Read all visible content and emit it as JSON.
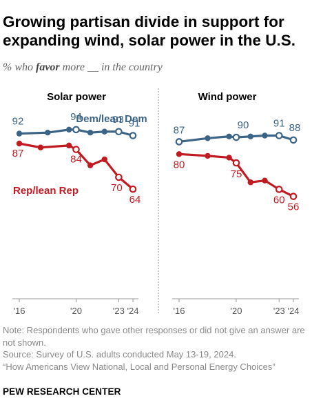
{
  "title": "Growing partisan divide in support for expanding wind, solar power in the U.S.",
  "subtitle": {
    "prefix": "% who ",
    "emphasis": "favor",
    "suffix": " more __ in the country"
  },
  "notes": {
    "note": "Note: Respondents who gave other responses or did not give an answer are not shown.",
    "source": "Source: Survey of U.S. adults conducted May 13-19, 2024.",
    "report": "“How Americans View National, Local and Personal Energy Choices”"
  },
  "footer": "PEW RESEARCH CENTER",
  "colors": {
    "dem": "#3b6487",
    "rep": "#c11b22",
    "axis": "#9a9a9a",
    "divider": "#999999"
  },
  "chart_data": [
    {
      "type": "line",
      "title": "Solar power",
      "x_ticks": [
        {
          "value": 2016,
          "label": "'16"
        },
        {
          "value": 2020,
          "label": "'20"
        },
        {
          "value": 2023,
          "label": "'23"
        },
        {
          "value": 2024,
          "label": "'24"
        }
      ],
      "xlim": [
        2016,
        2024
      ],
      "ylim": [
        55,
        95
      ],
      "series": [
        {
          "name": "Dem/lean Dem",
          "x": [
            2016,
            2018,
            2019.5,
            2020,
            2021,
            2022,
            2023,
            2024
          ],
          "y": [
            92,
            92.5,
            94,
            94,
            92.5,
            93,
            93,
            91
          ],
          "open": [
            false,
            false,
            false,
            true,
            false,
            false,
            true,
            true
          ],
          "labels": [
            "92",
            null,
            null,
            "94",
            null,
            null,
            "93",
            "91"
          ]
        },
        {
          "name": "Rep/lean Rep",
          "x": [
            2016,
            2017.5,
            2019.5,
            2020,
            2021,
            2022,
            2023,
            2024
          ],
          "y": [
            87,
            85,
            86,
            84,
            76,
            79,
            70,
            64
          ],
          "open": [
            false,
            false,
            false,
            true,
            false,
            false,
            true,
            true
          ],
          "labels": [
            "87",
            null,
            null,
            "84",
            null,
            null,
            "70",
            "64"
          ]
        }
      ]
    },
    {
      "type": "line",
      "title": "Wind power",
      "x_ticks": [
        {
          "value": 2016,
          "label": "'16"
        },
        {
          "value": 2020,
          "label": "'20"
        },
        {
          "value": 2023,
          "label": "'23"
        },
        {
          "value": 2024,
          "label": "'24"
        }
      ],
      "xlim": [
        2016,
        2024
      ],
      "ylim": [
        50,
        95
      ],
      "series": [
        {
          "name": "Dem/lean Dem",
          "x": [
            2016,
            2018,
            2019.5,
            2020,
            2021,
            2022,
            2023,
            2024
          ],
          "y": [
            87,
            89,
            90,
            89.5,
            90,
            90.5,
            90.5,
            88
          ],
          "open": [
            true,
            false,
            false,
            true,
            false,
            false,
            true,
            true
          ],
          "labels": [
            "87",
            null,
            null,
            "90",
            null,
            null,
            "91",
            "88"
          ]
        },
        {
          "name": "Rep/lean Rep",
          "x": [
            2016,
            2018,
            2019.5,
            2020,
            2021,
            2022,
            2023,
            2024
          ],
          "y": [
            80,
            79,
            78,
            75,
            64,
            65,
            60,
            56
          ],
          "open": [
            false,
            false,
            false,
            true,
            false,
            false,
            true,
            true
          ],
          "labels": [
            "80",
            null,
            null,
            "75",
            null,
            null,
            "60",
            "56"
          ]
        }
      ]
    }
  ]
}
